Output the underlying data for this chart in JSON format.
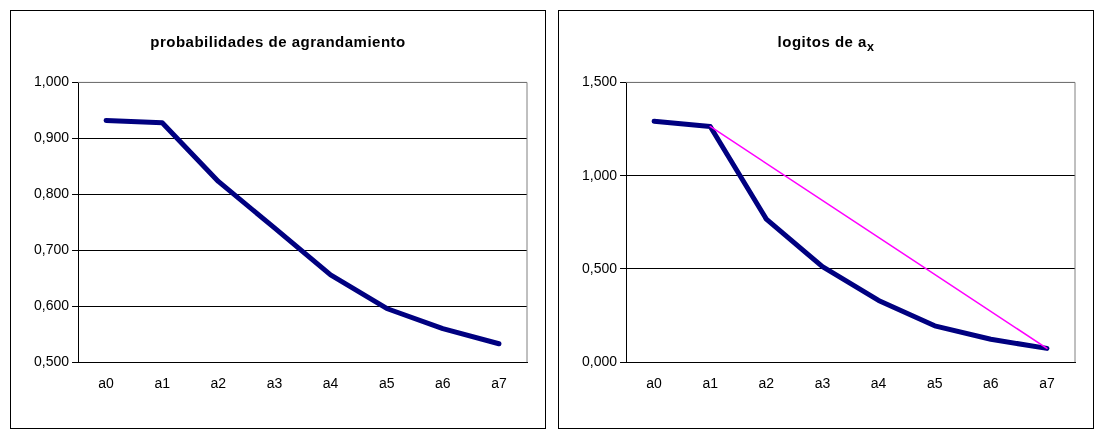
{
  "chart_data": [
    {
      "type": "line",
      "title": "probabilidades de agrandamiento",
      "categories": [
        "a0",
        "a1",
        "a2",
        "a3",
        "a4",
        "a5",
        "a6",
        "a7"
      ],
      "series": [
        {
          "color": "#000080",
          "values": [
            0.932,
            0.928,
            0.823,
            0.74,
            0.656,
            0.596,
            0.56,
            0.533
          ]
        }
      ],
      "ylim": [
        0.5,
        1
      ],
      "yticks": [
        {
          "value": 0.5,
          "label": "0,500"
        },
        {
          "value": 0.6,
          "label": "0,600"
        },
        {
          "value": 0.7,
          "label": "0,700"
        },
        {
          "value": 0.8,
          "label": "0,800"
        },
        {
          "value": 0.9,
          "label": "0,900"
        },
        {
          "value": 1,
          "label": "1,000"
        }
      ],
      "grid": "y",
      "legend": false,
      "marker": "none",
      "line_style": "solid"
    },
    {
      "type": "line",
      "title": "logitos de a$_{x}$",
      "categories": [
        "a0",
        "a1",
        "a2",
        "a3",
        "a4",
        "a5",
        "a6",
        "a7"
      ],
      "series": [
        {
          "color": "#000080",
          "values": [
            1.292,
            1.264,
            0.767,
            0.512,
            0.331,
            0.195,
            0.123,
            0.074
          ]
        },
        {
          "color": "#ff00ff",
          "values": [
            null,
            1.264,
            null,
            null,
            null,
            null,
            null,
            0.074
          ]
        }
      ],
      "ylim": [
        0,
        1.5
      ],
      "yticks": [
        {
          "value": 0,
          "label": "0,000"
        },
        {
          "value": 0.5,
          "label": "0,500"
        },
        {
          "value": 1,
          "label": "1,000"
        },
        {
          "value": 1.5,
          "label": "1,500"
        }
      ],
      "grid": "y",
      "legend": false,
      "marker": "none",
      "line_style": "solid"
    }
  ]
}
